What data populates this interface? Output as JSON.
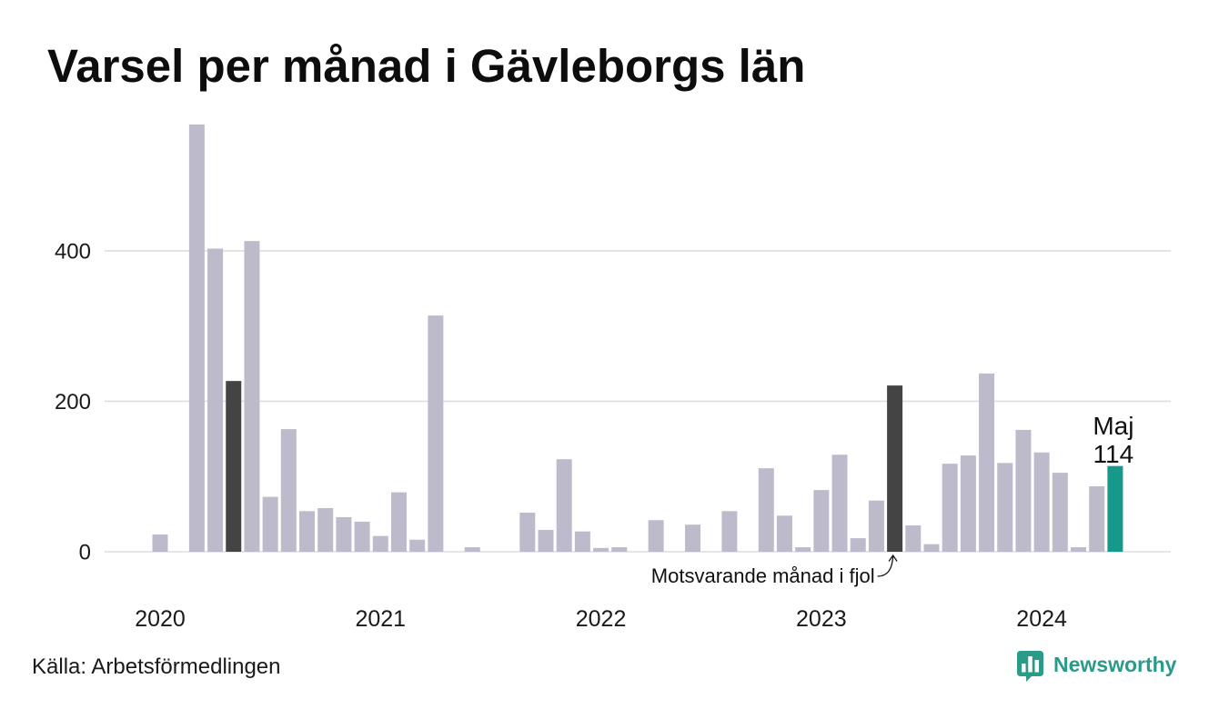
{
  "chart_data": {
    "type": "bar",
    "title": "Varsel per månad i Gävleborgs län",
    "x": [
      "2020-01",
      "2020-02",
      "2020-03",
      "2020-04",
      "2020-05",
      "2020-06",
      "2020-07",
      "2020-08",
      "2020-09",
      "2020-10",
      "2020-11",
      "2020-12",
      "2021-01",
      "2021-02",
      "2021-03",
      "2021-04",
      "2021-05",
      "2021-06",
      "2021-07",
      "2021-08",
      "2021-09",
      "2021-10",
      "2021-11",
      "2021-12",
      "2022-01",
      "2022-02",
      "2022-03",
      "2022-04",
      "2022-05",
      "2022-06",
      "2022-07",
      "2022-08",
      "2022-09",
      "2022-10",
      "2022-11",
      "2022-12",
      "2023-01",
      "2023-02",
      "2023-03",
      "2023-04",
      "2023-05",
      "2023-06",
      "2023-07",
      "2023-08",
      "2023-09",
      "2023-10",
      "2023-11",
      "2023-12",
      "2024-01",
      "2024-02",
      "2024-03",
      "2024-04",
      "2024-05"
    ],
    "values": [
      23,
      0,
      568,
      403,
      227,
      413,
      73,
      163,
      54,
      58,
      46,
      40,
      21,
      79,
      16,
      314,
      0,
      6,
      0,
      0,
      52,
      29,
      123,
      27,
      5,
      6,
      0,
      42,
      0,
      36,
      0,
      54,
      0,
      111,
      48,
      6,
      82,
      129,
      18,
      68,
      221,
      35,
      10,
      117,
      128,
      237,
      118,
      162,
      132,
      105,
      6,
      87,
      114
    ],
    "x_tick_labels": [
      "2020",
      "2021",
      "2022",
      "2023",
      "2024"
    ],
    "y_ticks": [
      0,
      200,
      400
    ],
    "ylim": [
      0,
      580
    ],
    "grid": true,
    "colors": {
      "default": "#bdbbcb",
      "same_month": "#444444",
      "latest": "#16998b"
    },
    "dark_bars": [
      "2020-05",
      "2023-05"
    ],
    "latest": {
      "x": "2024-05",
      "month_label": "Maj",
      "value_label": "114"
    },
    "annotation": {
      "text": "Motsvarande månad i fjol",
      "x": "2023-05"
    }
  },
  "source": "Källa: Arbetsförmedlingen",
  "brand": {
    "name": "Newsworthy",
    "icon": "newsworthy-logo-icon",
    "color": "#2a9a89"
  }
}
